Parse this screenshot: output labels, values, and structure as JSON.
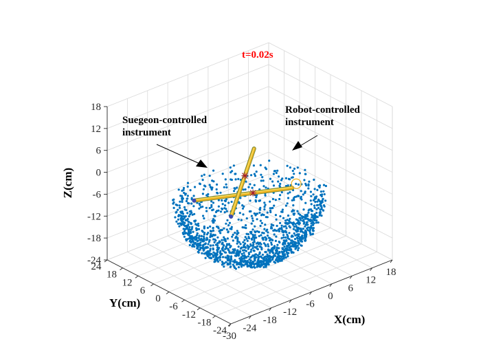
{
  "chart_data": {
    "type": "scatter3d",
    "title": "t=0.02s",
    "xlabel": "X(cm)",
    "ylabel": "Y(cm)",
    "zlabel": "Z(cm)",
    "xlim": [
      -30,
      18
    ],
    "ylim": [
      -24,
      24
    ],
    "zlim": [
      -24,
      18
    ],
    "x_ticks": [
      "-30",
      "-24",
      "-18",
      "-12",
      "-6",
      "0",
      "6",
      "12",
      "18"
    ],
    "y_ticks": [
      "-24",
      "-18",
      "-12",
      "-6",
      "0",
      "6",
      "12",
      "18",
      "24"
    ],
    "z_ticks": [
      "-24",
      "-18",
      "-12",
      "-6",
      "0",
      "6",
      "12",
      "18"
    ],
    "grid": true,
    "point_cloud": {
      "shape": "hemispherical bowl",
      "center": [
        -6,
        0,
        -6
      ],
      "radius": 18,
      "approx_count": 1500,
      "color": "#0072BD"
    },
    "instruments": [
      {
        "label": "Suegeon-controlled instrument",
        "start": [
          -21,
          2,
          -3
        ],
        "end": [
          2,
          -6,
          -5
        ],
        "color": "#EDB120"
      },
      {
        "label": "Robot-controlled instrument",
        "start": [
          -20,
          -11,
          -3
        ],
        "end": [
          6,
          14,
          -3
        ],
        "color": "#EDB120"
      }
    ],
    "marker_color": "#A2142F"
  }
}
